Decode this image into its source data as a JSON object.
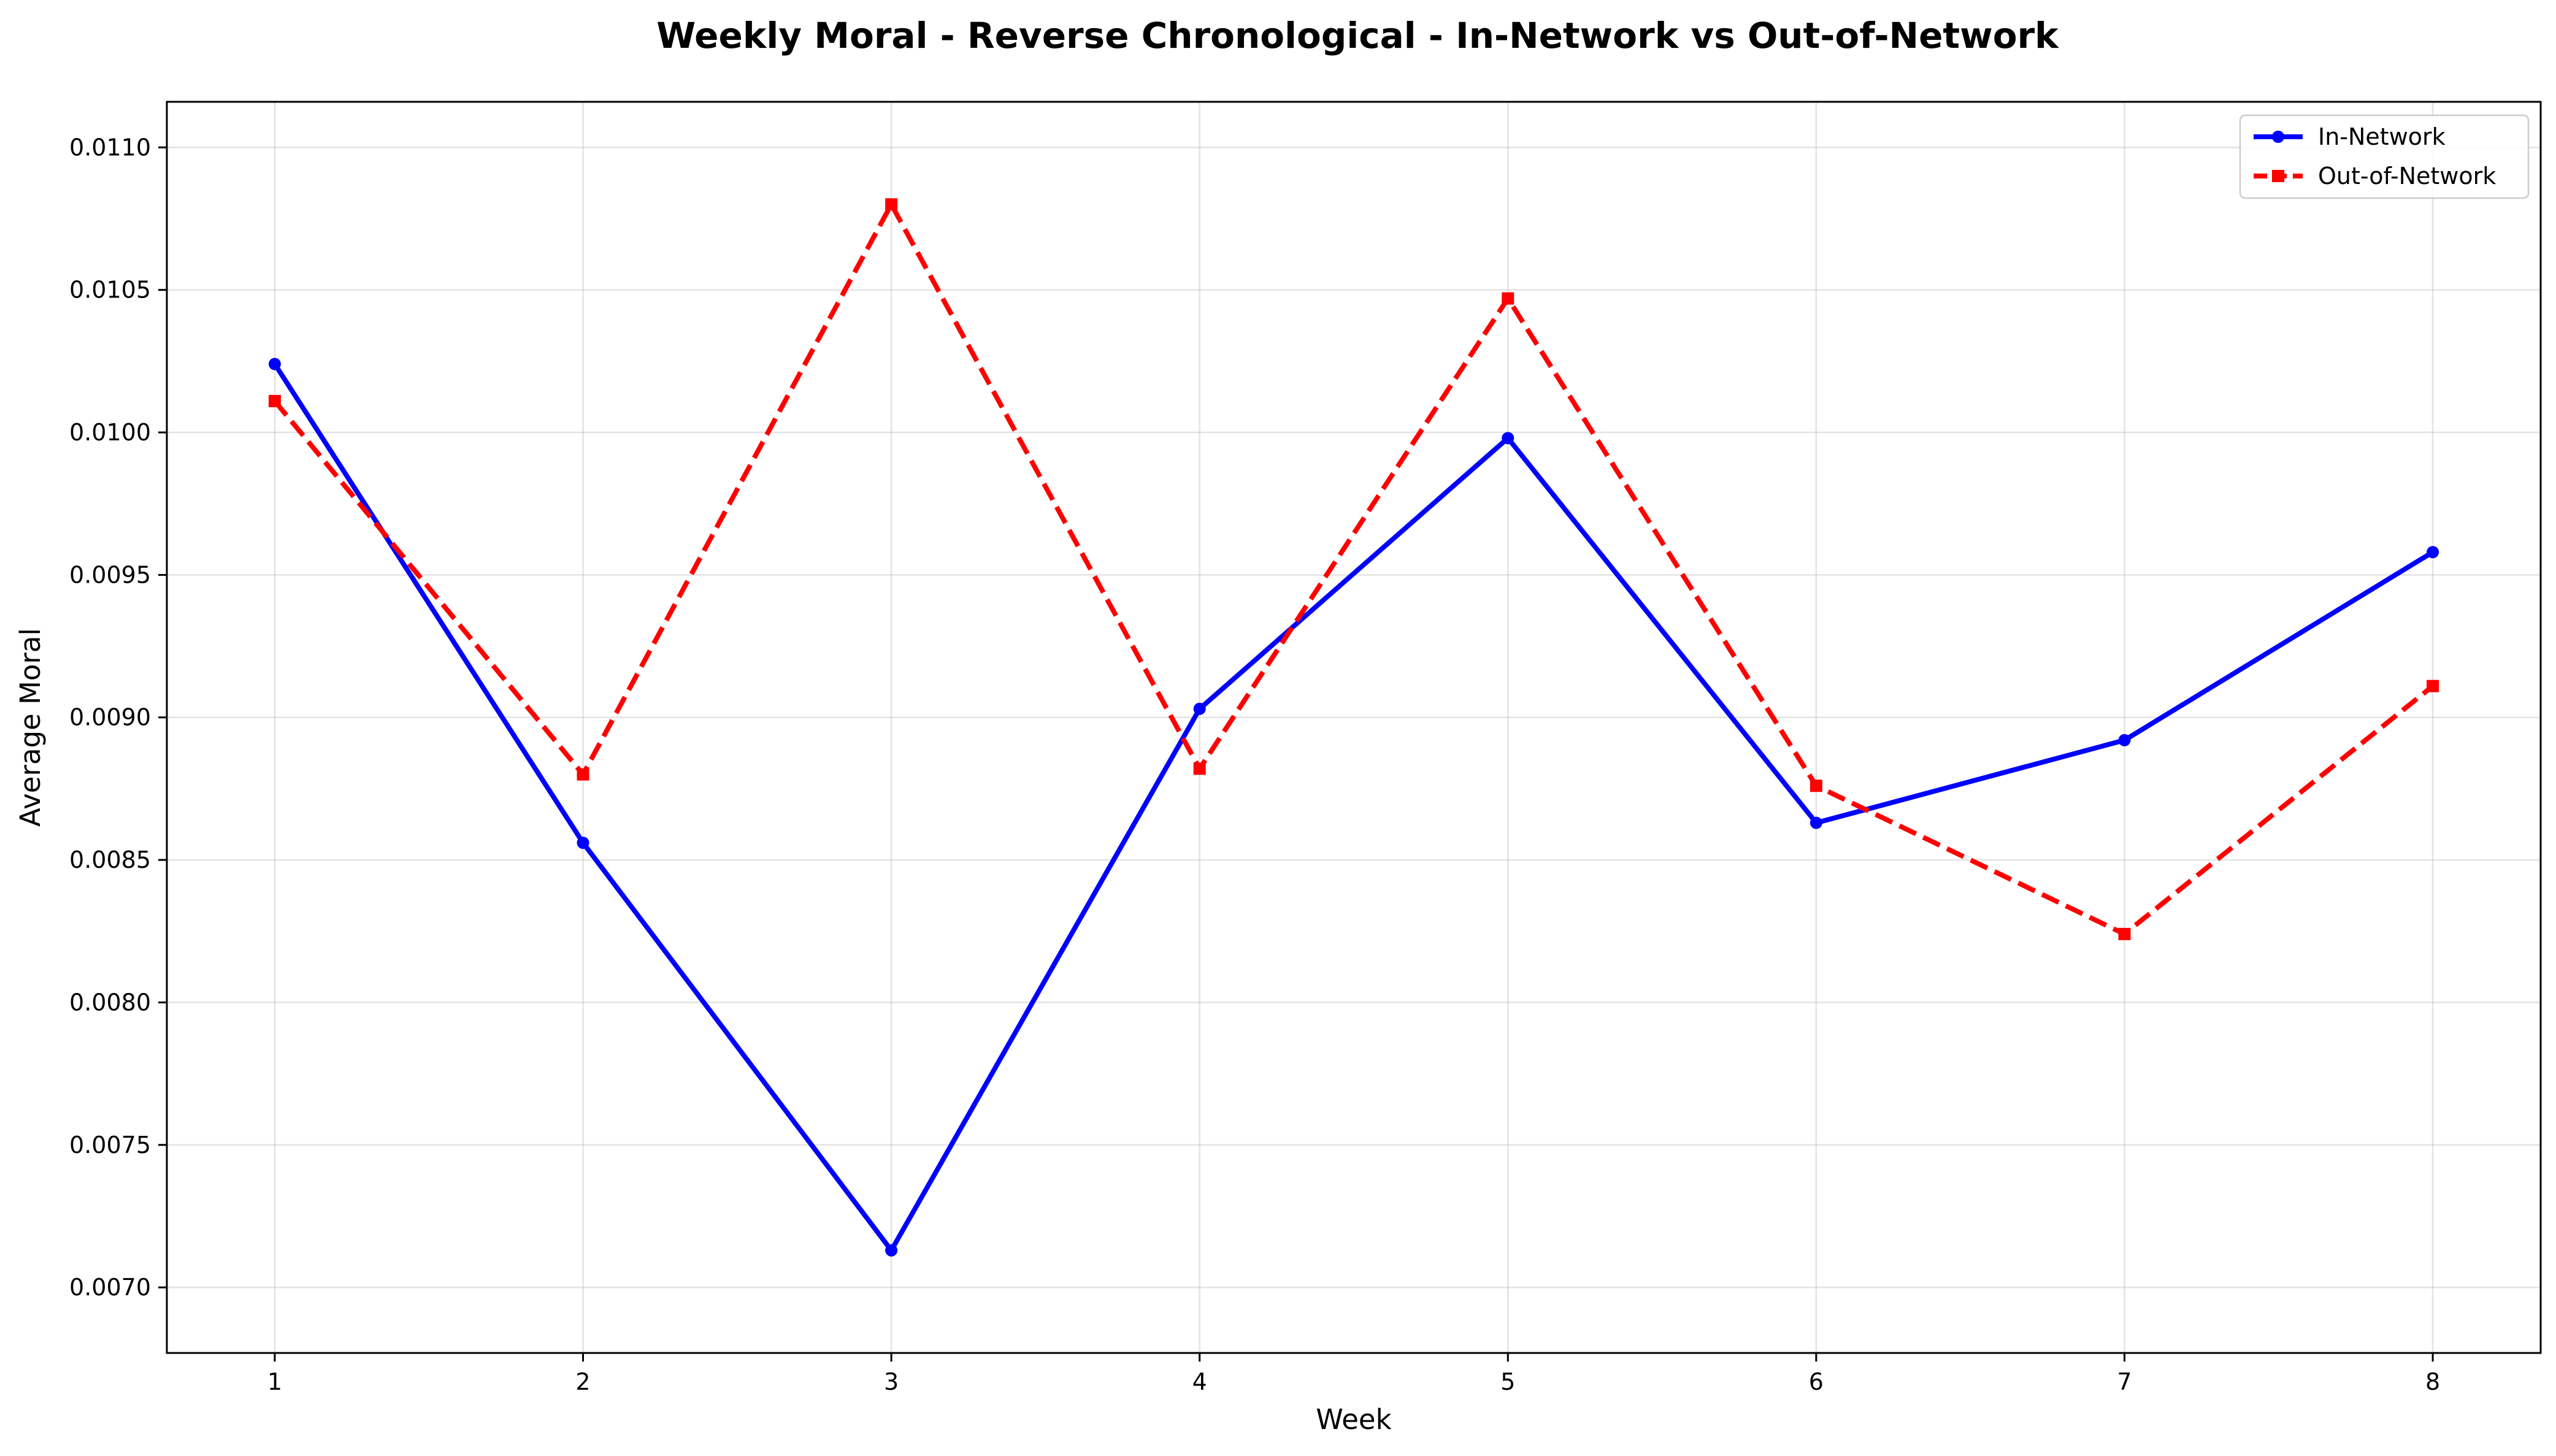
{
  "chart_data": {
    "type": "line",
    "title": "Weekly Moral - Reverse Chronological - In-Network vs Out-of-Network",
    "xlabel": "Week",
    "ylabel": "Average Moral",
    "x": [
      1,
      2,
      3,
      4,
      5,
      6,
      7,
      8
    ],
    "xlim": [
      0.65,
      8.35
    ],
    "ylim": [
      0.00677,
      0.01116
    ],
    "xticks": [
      "1",
      "2",
      "3",
      "4",
      "5",
      "6",
      "7",
      "8"
    ],
    "yticks": [
      "0.0070",
      "0.0075",
      "0.0080",
      "0.0085",
      "0.0090",
      "0.0095",
      "0.0100",
      "0.0105",
      "0.0110"
    ],
    "grid": true,
    "legend_position": "top-right",
    "series": [
      {
        "name": "In-Network",
        "color": "#0000ff",
        "line_style": "solid",
        "marker": "circle",
        "values": [
          0.01024,
          0.00856,
          0.00713,
          0.00903,
          0.00998,
          0.00863,
          0.00892,
          0.00958
        ]
      },
      {
        "name": "Out-of-Network",
        "color": "#ff0000",
        "line_style": "dashed",
        "marker": "square",
        "values": [
          0.01011,
          0.0088,
          0.0108,
          0.00882,
          0.01047,
          0.00876,
          0.00824,
          0.00911
        ]
      }
    ]
  }
}
